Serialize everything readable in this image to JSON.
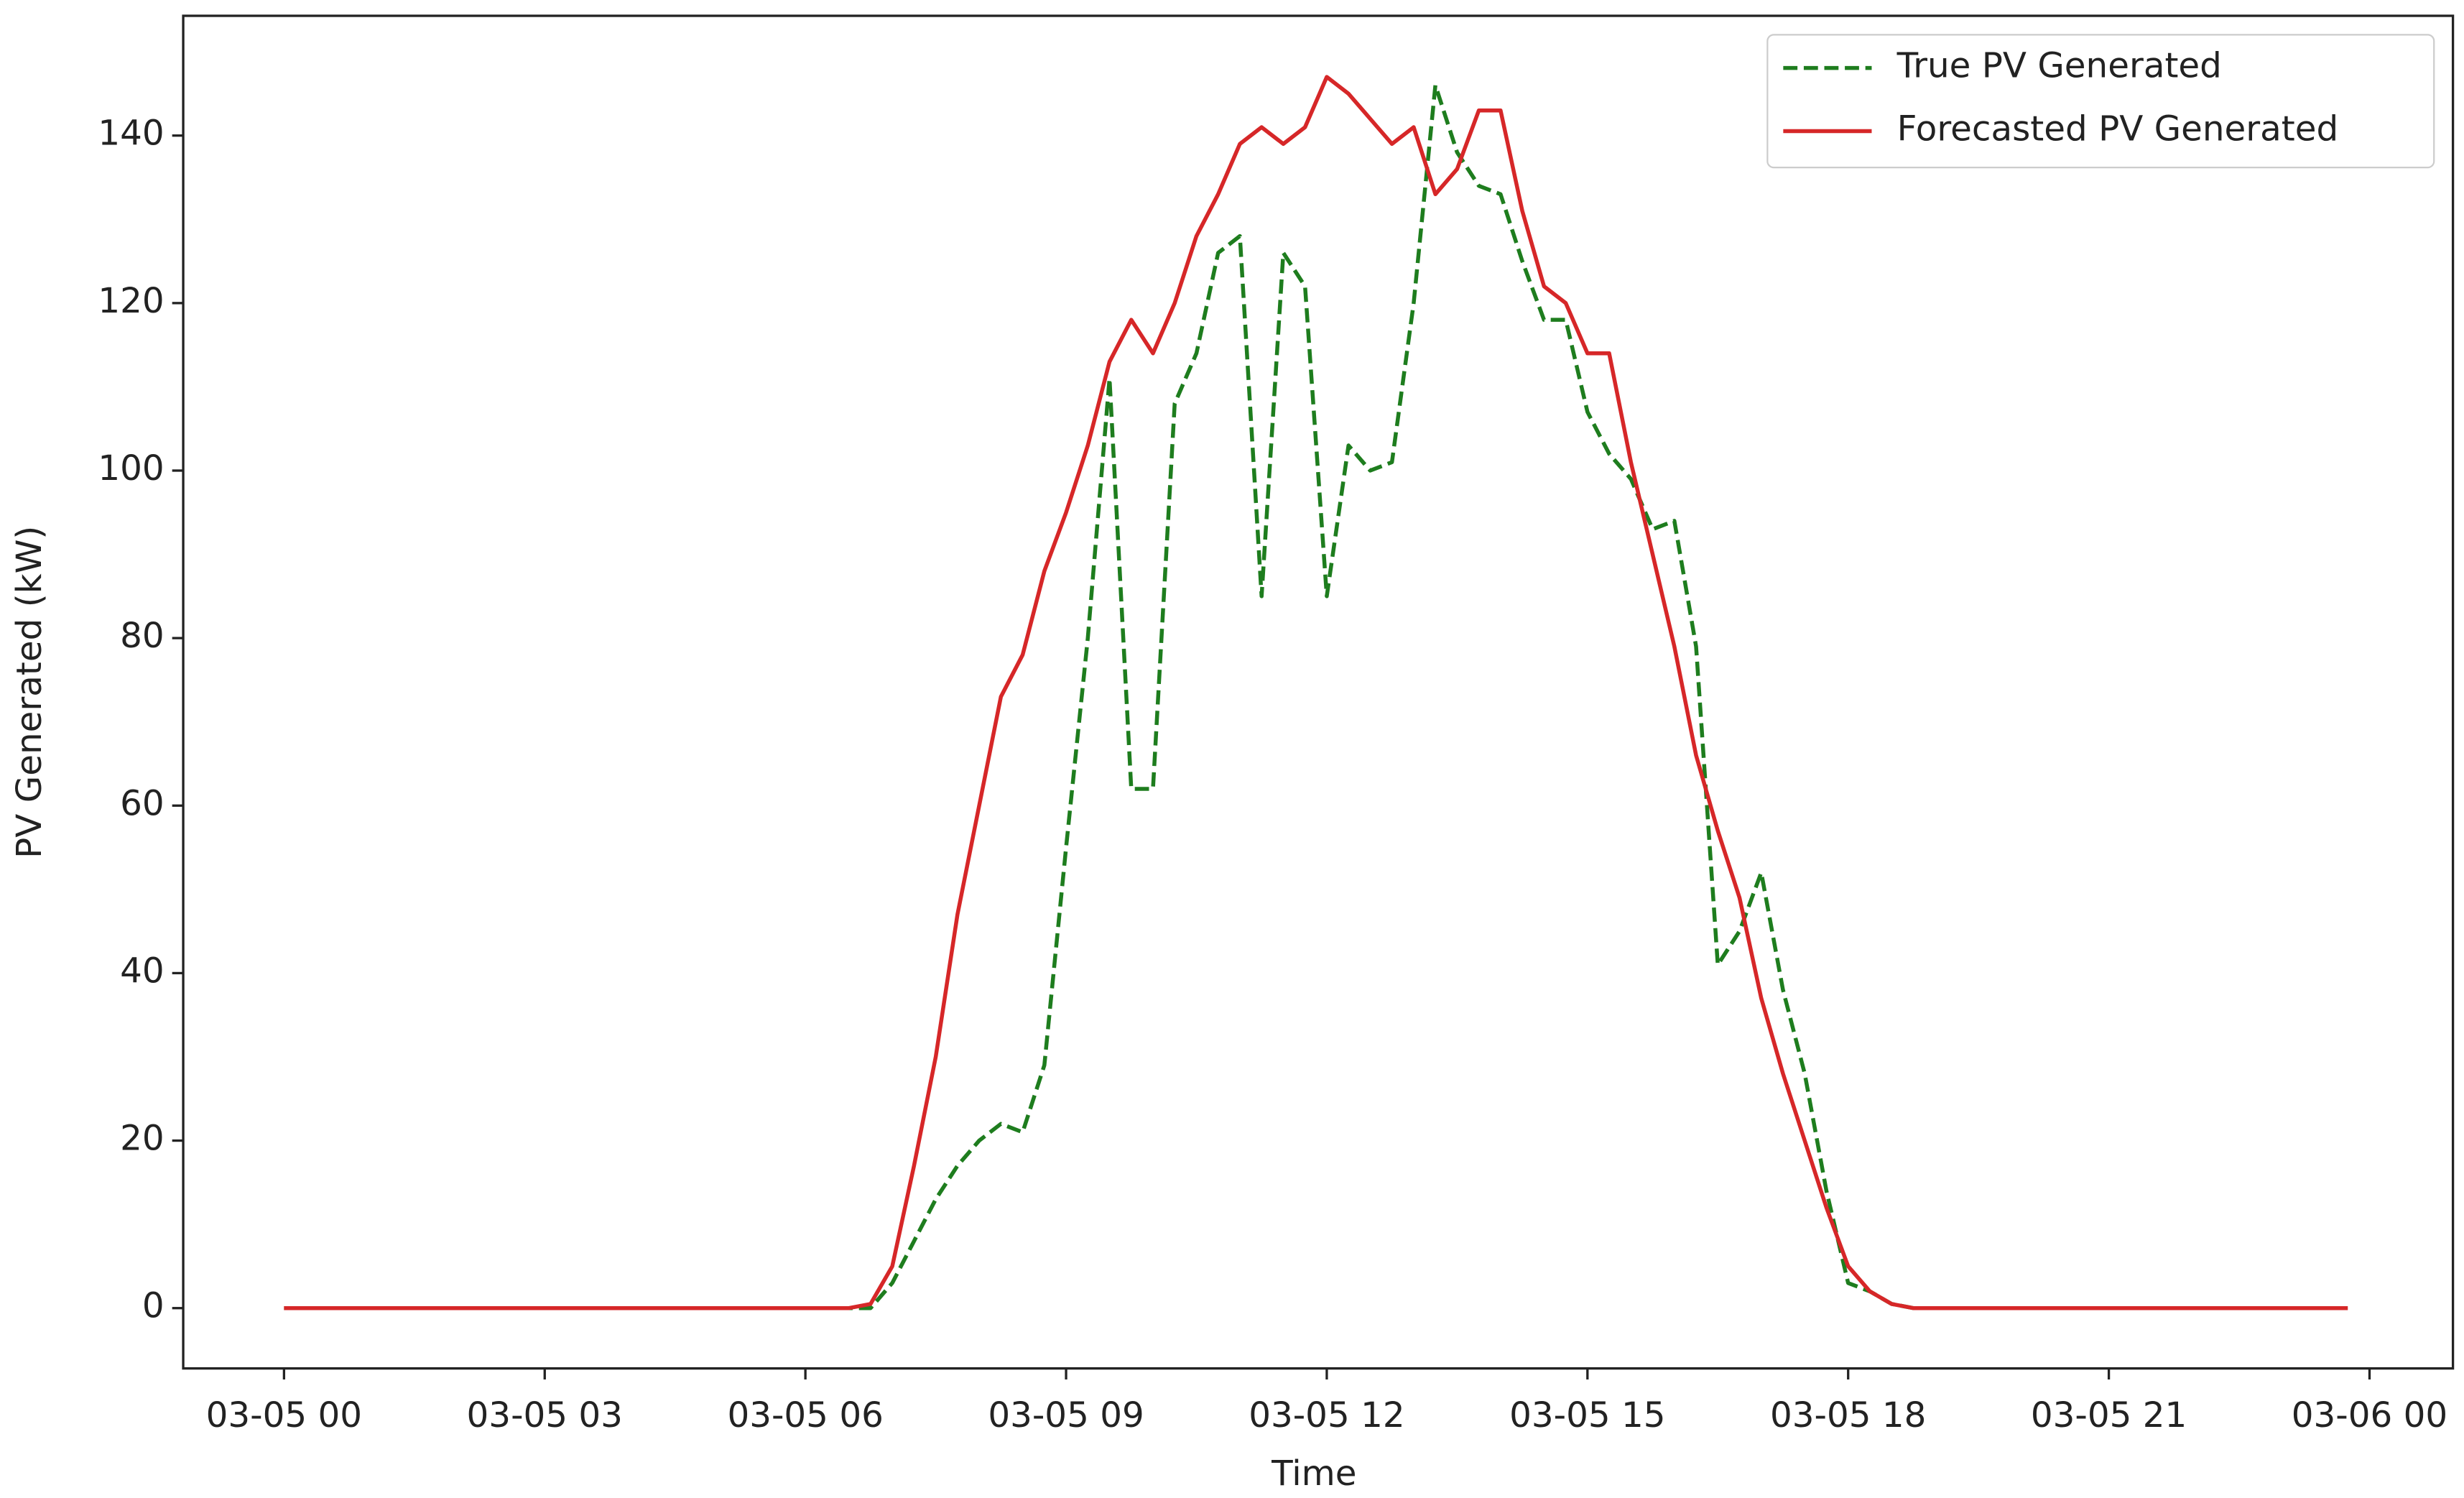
{
  "chart_data": {
    "type": "line",
    "x_label": "Time",
    "y_label": "PV Generated (kW)",
    "x": [
      0,
      6.5,
      6.75,
      7,
      7.25,
      7.5,
      7.75,
      8,
      8.25,
      8.5,
      8.75,
      9,
      9.25,
      9.5,
      9.75,
      10,
      10.25,
      10.5,
      10.75,
      11,
      11.25,
      11.5,
      11.75,
      12,
      12.25,
      12.5,
      12.75,
      13,
      13.25,
      13.5,
      13.75,
      14,
      14.25,
      14.5,
      14.75,
      15,
      15.25,
      15.5,
      15.75,
      16,
      16.25,
      16.5,
      16.75,
      17,
      17.25,
      17.5,
      17.75,
      18,
      18.25,
      18.5,
      18.75,
      19,
      23.75
    ],
    "series": [
      {
        "name": "True PV Generated",
        "color": "#1e7d1e",
        "dash": true,
        "values": [
          0,
          0,
          0,
          3,
          8,
          13,
          17,
          20,
          22,
          21,
          29,
          55,
          80,
          111,
          62,
          62,
          108,
          114,
          126,
          128,
          85,
          126,
          122,
          85,
          103,
          100,
          101,
          120,
          146,
          138,
          134,
          133,
          125,
          118,
          118,
          107,
          102,
          99,
          93,
          94,
          79,
          41,
          45,
          52,
          38,
          28,
          14,
          3,
          2,
          0.5,
          0,
          0,
          0
        ]
      },
      {
        "name": "Forecasted PV Generated",
        "color": "#d62728",
        "dash": false,
        "values": [
          0,
          0,
          0.5,
          5,
          17,
          30,
          47,
          60,
          73,
          78,
          88,
          95,
          103,
          113,
          118,
          114,
          120,
          128,
          133,
          139,
          141,
          139,
          141,
          147,
          145,
          142,
          139,
          141,
          133,
          136,
          143,
          143,
          131,
          122,
          120,
          114,
          114,
          101,
          90,
          79,
          66,
          57,
          49,
          37,
          28,
          20,
          12,
          5,
          2,
          0.5,
          0,
          0,
          0
        ]
      }
    ],
    "xlim": [
      -1.16,
      24.96
    ],
    "xticks": [
      {
        "value": 0,
        "label": "03-05 00"
      },
      {
        "value": 3,
        "label": "03-05 03"
      },
      {
        "value": 6,
        "label": "03-05 06"
      },
      {
        "value": 9,
        "label": "03-05 09"
      },
      {
        "value": 12,
        "label": "03-05 12"
      },
      {
        "value": 15,
        "label": "03-05 15"
      },
      {
        "value": 18,
        "label": "03-05 18"
      },
      {
        "value": 21,
        "label": "03-05 21"
      },
      {
        "value": 24,
        "label": "03-06 00"
      }
    ],
    "ylim": [
      -7.2,
      154.3
    ],
    "yticks": [
      0,
      20,
      40,
      60,
      80,
      100,
      120,
      140
    ],
    "grid": false,
    "legend": "upper right"
  }
}
